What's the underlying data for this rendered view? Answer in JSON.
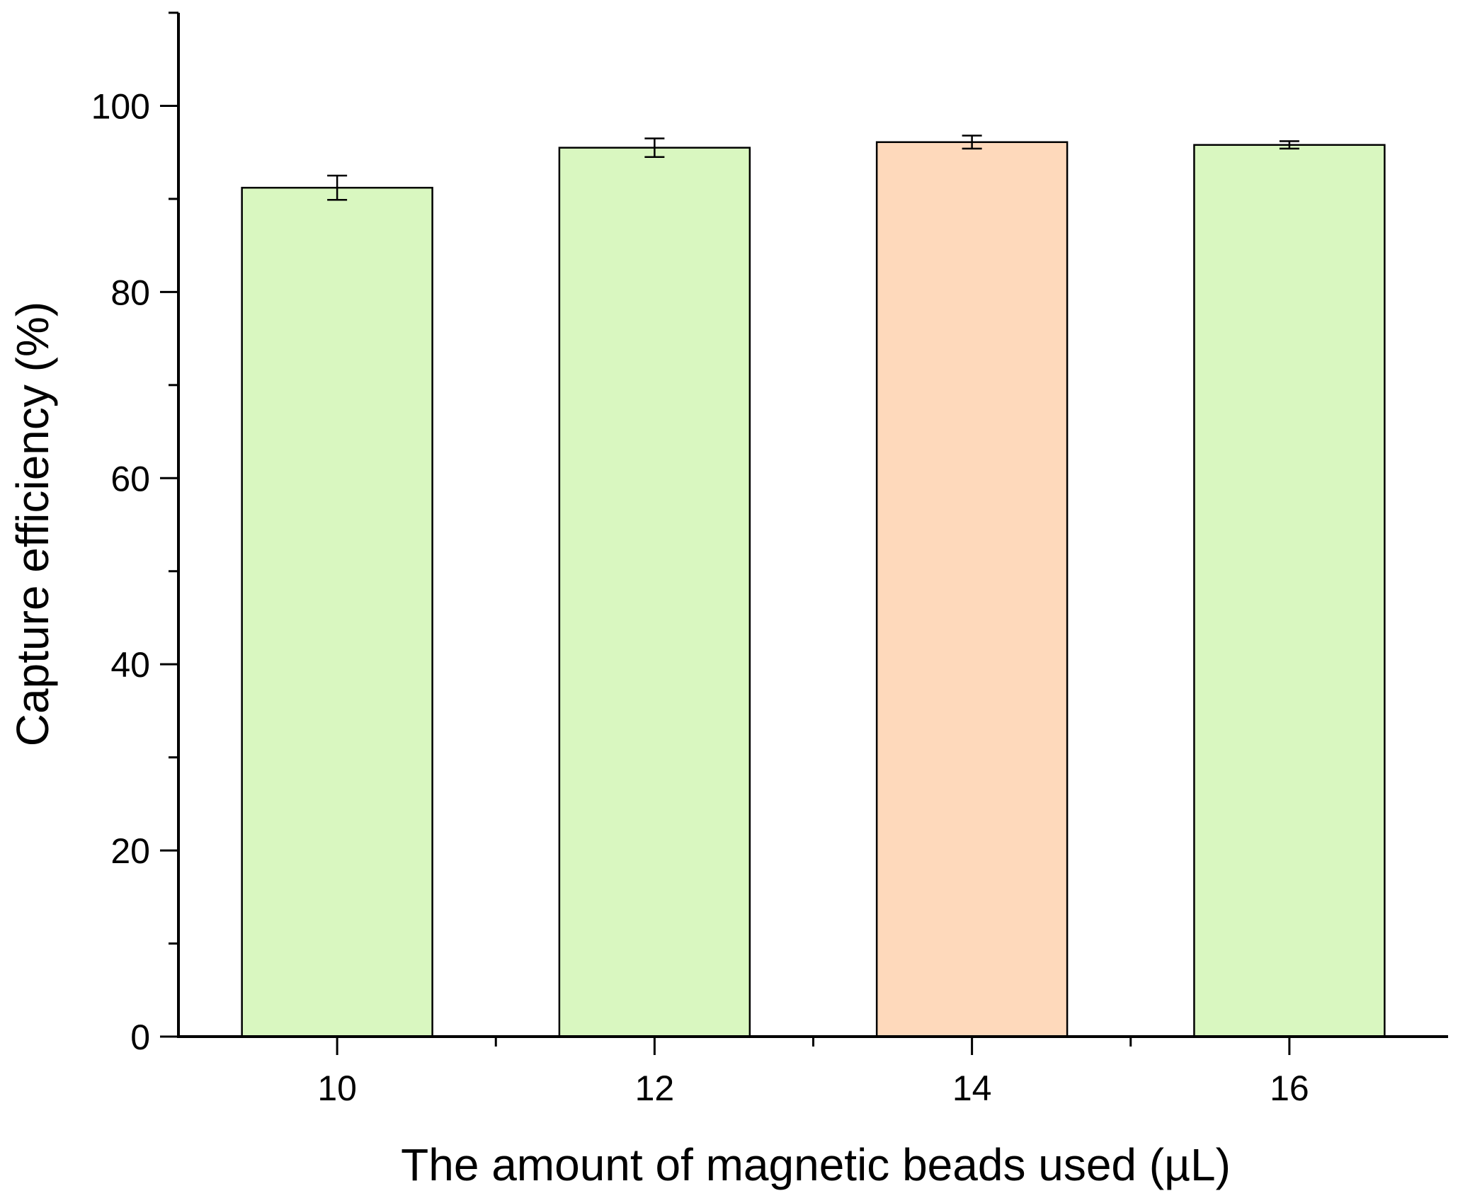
{
  "chart_data": {
    "type": "bar",
    "title": "",
    "xlabel": "The amount of magnetic beads used (µL)",
    "ylabel": "Capture efficiency (%)",
    "categories": [
      "10",
      "12",
      "14",
      "16"
    ],
    "values": [
      91.2,
      95.5,
      96.1,
      95.8
    ],
    "errors": [
      1.3,
      1.0,
      0.7,
      0.4
    ],
    "bar_colors": [
      "#d9f7c0",
      "#d9f7c0",
      "#fed9bb",
      "#d9f7c0"
    ],
    "ylim": [
      0,
      110
    ],
    "yticks": [
      0,
      20,
      40,
      60,
      80,
      100
    ],
    "y_minor_step": 10,
    "grid": false,
    "legend": "none"
  }
}
